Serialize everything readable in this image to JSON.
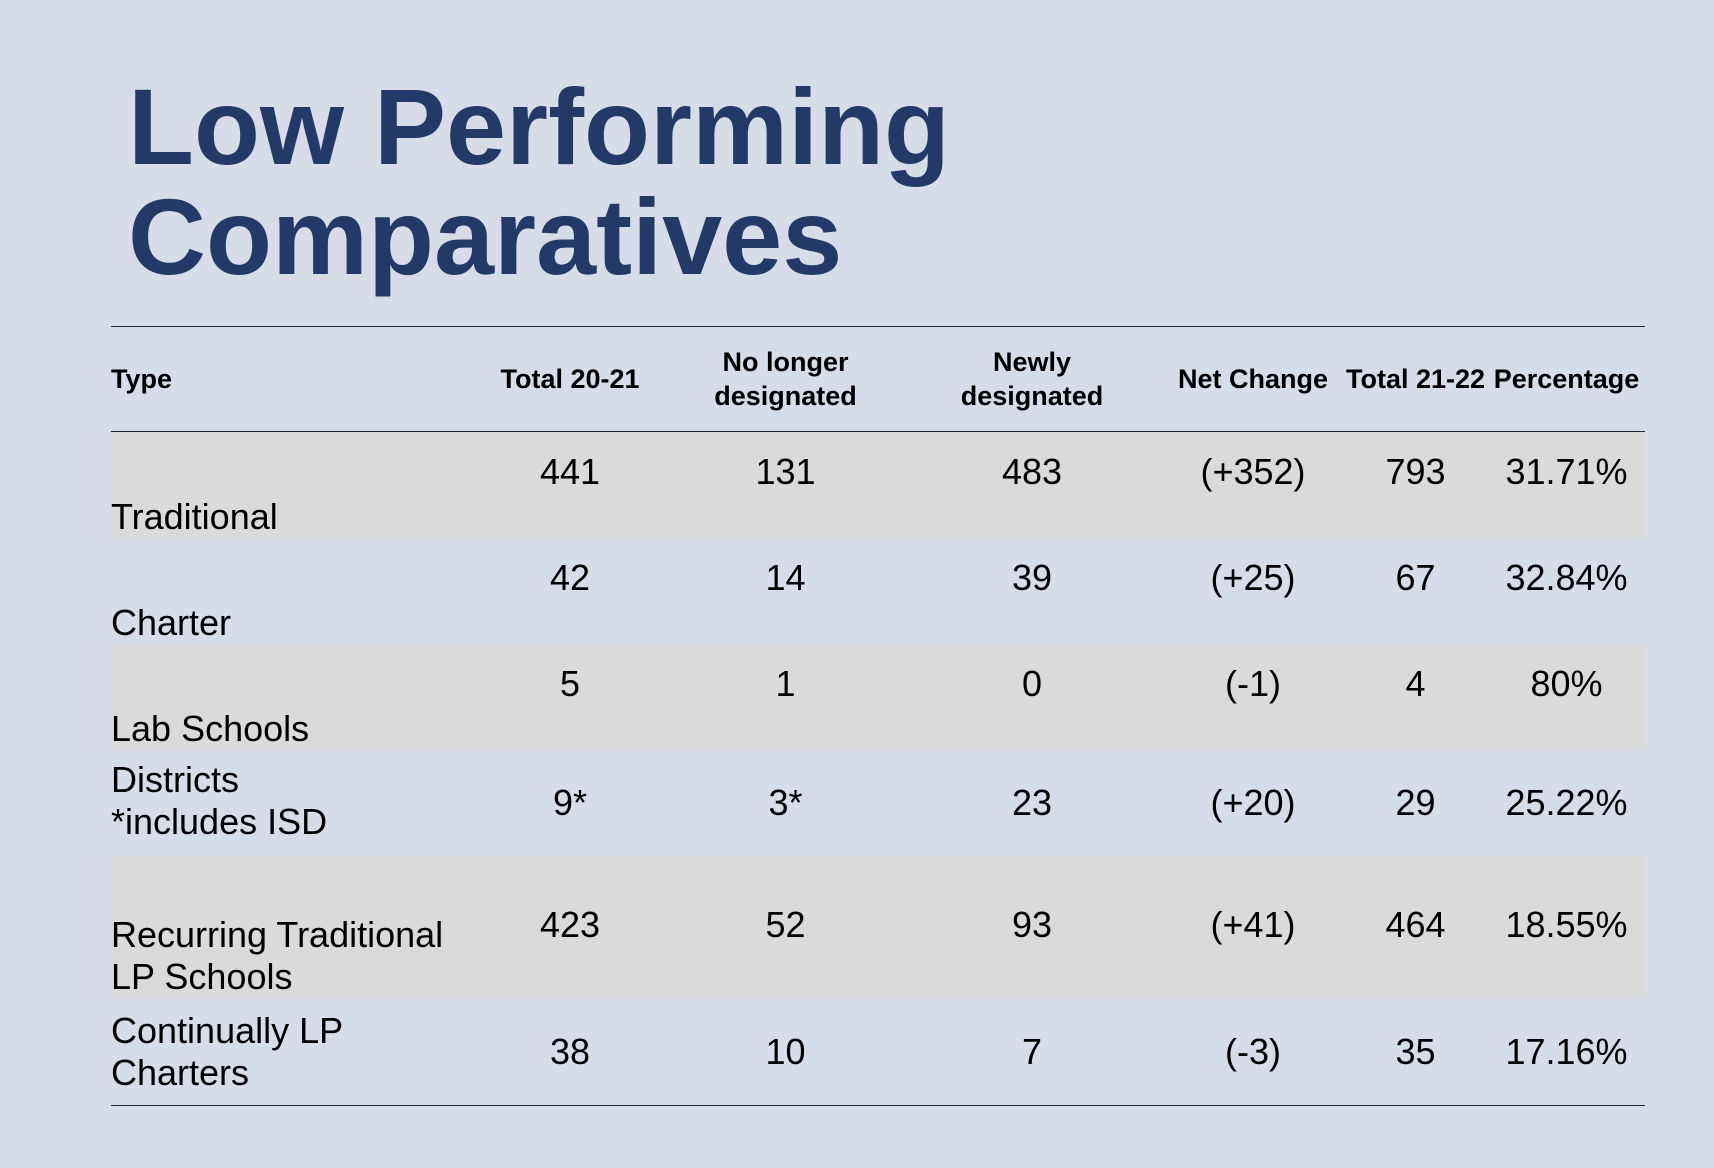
{
  "title": {
    "line1": "Low Performing",
    "line2": "Comparatives"
  },
  "table": {
    "headers": [
      "Type",
      "Total 20-21",
      "No longer\ndesignated",
      "Newly\ndesignated",
      "Net Change",
      "Total 21-22",
      "Percentage"
    ],
    "rows": [
      [
        "Traditional",
        "441",
        "131",
        "483",
        "(+352)",
        "793",
        "31.71%"
      ],
      [
        "Charter",
        "42",
        "14",
        "39",
        "(+25)",
        "67",
        "32.84%"
      ],
      [
        "Lab Schools",
        "5",
        "1",
        "0",
        "(-1)",
        "4",
        "80%"
      ],
      [
        "Districts\n*includes ISD",
        "9*",
        "3*",
        "23",
        "(+20)",
        "29",
        "25.22%"
      ],
      [
        "Recurring Traditional\nLP Schools",
        "423",
        "52",
        "93",
        "(+41)",
        "464",
        "18.55%"
      ],
      [
        "Continually LP\nCharters",
        "38",
        "10",
        "7",
        "(-3)",
        "35",
        "17.16%"
      ]
    ]
  }
}
